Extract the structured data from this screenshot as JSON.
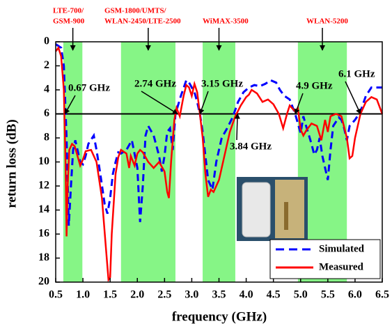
{
  "chart_data": {
    "type": "line",
    "xlabel": "frequency (GHz)",
    "ylabel": "return loss (dB)",
    "xlim": [
      0.5,
      6.5
    ],
    "ylim": [
      20,
      0
    ],
    "y_reversed": true,
    "xticks": [
      0.5,
      {
        "value": 1,
        "label": "1.0"
      },
      1.5,
      {
        "value": 2,
        "label": "2.0"
      },
      2.5,
      {
        "value": 3,
        "label": "3.0"
      },
      3.5,
      {
        "value": 4,
        "label": "4.0"
      },
      4.5,
      {
        "value": 5,
        "label": "5.0"
      },
      5.5,
      {
        "value": 6,
        "label": "6.0"
      },
      6.5
    ],
    "yticks": [
      0,
      2,
      4,
      6,
      8,
      10,
      12,
      14,
      16,
      18,
      20
    ],
    "hline": 6,
    "legend": "lower right",
    "bands": [
      {
        "label": [
          "LTE-700/",
          "GSM-900"
        ],
        "range": [
          0.64,
          0.99
        ]
      },
      {
        "label": [
          "GSM-1800/UMTS/",
          "WLAN-2450/LTE-2500"
        ],
        "range": [
          1.7,
          2.7
        ]
      },
      {
        "label": [
          "WiMAX-3500"
        ],
        "range": [
          3.2,
          3.8
        ]
      },
      {
        "label": [
          "WLAN-5200"
        ],
        "range": [
          4.95,
          5.85
        ]
      }
    ],
    "band_color": "#86f586",
    "annotations": [
      {
        "text": "0.67 GHz",
        "x": 0.67,
        "y": 6
      },
      {
        "text": "2.74 GHz",
        "x": 2.74,
        "y": 6
      },
      {
        "text": "3.15 GHz",
        "x": 3.15,
        "y": 6
      },
      {
        "text": "3.84 GHz",
        "x": 3.84,
        "y": 6
      },
      {
        "text": "4.9 GHz",
        "x": 4.9,
        "y": 6
      },
      {
        "text": "6.1 GHz",
        "x": 6.1,
        "y": 6
      }
    ],
    "series": [
      {
        "name": "Simulated",
        "color": "#0000ff",
        "dashed": true,
        "x": [
          0.5,
          0.6,
          0.65,
          0.7,
          0.74,
          0.78,
          0.82,
          0.86,
          0.9,
          0.95,
          1.0,
          1.05,
          1.1,
          1.2,
          1.25,
          1.32,
          1.4,
          1.45,
          1.5,
          1.55,
          1.6,
          1.65,
          1.7,
          1.8,
          1.9,
          2.0,
          2.05,
          2.1,
          2.15,
          2.2,
          2.3,
          2.4,
          2.45,
          2.5,
          2.55,
          2.6,
          2.65,
          2.7,
          2.8,
          2.9,
          2.95,
          3.05,
          3.1,
          3.15,
          3.2,
          3.25,
          3.3,
          3.38,
          3.45,
          3.55,
          3.65,
          3.75,
          3.85,
          3.95,
          4.05,
          4.15,
          4.25,
          4.35,
          4.45,
          4.55,
          4.62,
          4.7,
          4.8,
          4.9,
          5.0,
          5.05,
          5.1,
          5.2,
          5.25,
          5.3,
          5.35,
          5.4,
          5.45,
          5.5,
          5.55,
          5.6,
          5.7,
          5.75,
          5.8,
          5.85,
          5.9,
          6.0,
          6.1,
          6.2,
          6.3,
          6.4,
          6.5
        ],
        "values": [
          0.2,
          0.5,
          2,
          8,
          15.3,
          12,
          9,
          8.2,
          9,
          10,
          10.2,
          9.5,
          8.5,
          7.8,
          9,
          11,
          13.5,
          14.3,
          13,
          11,
          10,
          9.2,
          9.3,
          9.0,
          8.2,
          10.5,
          15,
          12,
          7.8,
          7.0,
          7.8,
          9.5,
          10.8,
          9.5,
          7.5,
          7.2,
          9,
          6,
          4.5,
          3.2,
          3.4,
          4.2,
          5,
          6,
          7.5,
          9.5,
          11.5,
          12.3,
          10,
          8.0,
          7.2,
          6.3,
          5,
          4.2,
          3.8,
          3.6,
          3.7,
          3.5,
          3.2,
          3.4,
          4,
          4.5,
          4.8,
          6,
          7.6,
          6.2,
          7.0,
          8.5,
          9.4,
          9.0,
          8.0,
          9.5,
          10.5,
          11.5,
          9.0,
          7.0,
          6.3,
          6.5,
          7.2,
          8.2,
          7.0,
          6.5,
          5.8,
          4.5,
          3.8,
          3.8,
          3.8
        ]
      },
      {
        "name": "Measured",
        "color": "#ff0000",
        "dashed": false,
        "x": [
          0.5,
          0.55,
          0.6,
          0.65,
          0.68,
          0.7,
          0.72,
          0.75,
          0.8,
          0.85,
          0.9,
          0.95,
          1.0,
          1.05,
          1.15,
          1.25,
          1.35,
          1.42,
          1.47,
          1.5,
          1.53,
          1.6,
          1.65,
          1.7,
          1.8,
          1.85,
          1.88,
          1.95,
          2.0,
          2.05,
          2.1,
          2.2,
          2.3,
          2.4,
          2.5,
          2.55,
          2.58,
          2.62,
          2.68,
          2.72,
          2.78,
          2.85,
          2.9,
          2.95,
          3.0,
          3.05,
          3.1,
          3.15,
          3.2,
          3.25,
          3.3,
          3.35,
          3.4,
          3.45,
          3.5,
          3.6,
          3.7,
          3.8,
          3.9,
          4.0,
          4.05,
          4.1,
          4.2,
          4.3,
          4.4,
          4.5,
          4.6,
          4.68,
          4.75,
          4.8,
          4.9,
          4.95,
          5.0,
          5.05,
          5.1,
          5.2,
          5.3,
          5.38,
          5.45,
          5.5,
          5.55,
          5.65,
          5.75,
          5.85,
          5.9,
          5.95,
          6.0,
          6.1,
          6.2,
          6.3,
          6.4,
          6.5
        ],
        "values": [
          0.8,
          0.5,
          1.2,
          4,
          10,
          16.2,
          12,
          9,
          8.5,
          8.7,
          9.5,
          10.3,
          9.8,
          9.1,
          9.0,
          10,
          13,
          17,
          19.8,
          19.6,
          16,
          11,
          9.6,
          9.0,
          9.3,
          10.5,
          9.5,
          10.3,
          9.3,
          9.0,
          9.2,
          10,
          10.5,
          10,
          10.8,
          12.5,
          13,
          10,
          6.5,
          5.5,
          6.2,
          4.5,
          3.6,
          3.8,
          4.5,
          3.5,
          4.2,
          6,
          8,
          11,
          12.9,
          12.3,
          12.5,
          12,
          11.5,
          9.5,
          7.5,
          6.2,
          5.3,
          4.6,
          4.4,
          4.0,
          4.3,
          5,
          4.8,
          5.2,
          6.0,
          7.2,
          6,
          5.3,
          5.8,
          5.5,
          7.3,
          7.8,
          7.4,
          6.8,
          7.0,
          8.2,
          6.5,
          7.5,
          6.2,
          6.0,
          6.2,
          8,
          9.7,
          9.5,
          8,
          6,
          5.0,
          4.6,
          4.8,
          6.0
        ]
      }
    ]
  }
}
